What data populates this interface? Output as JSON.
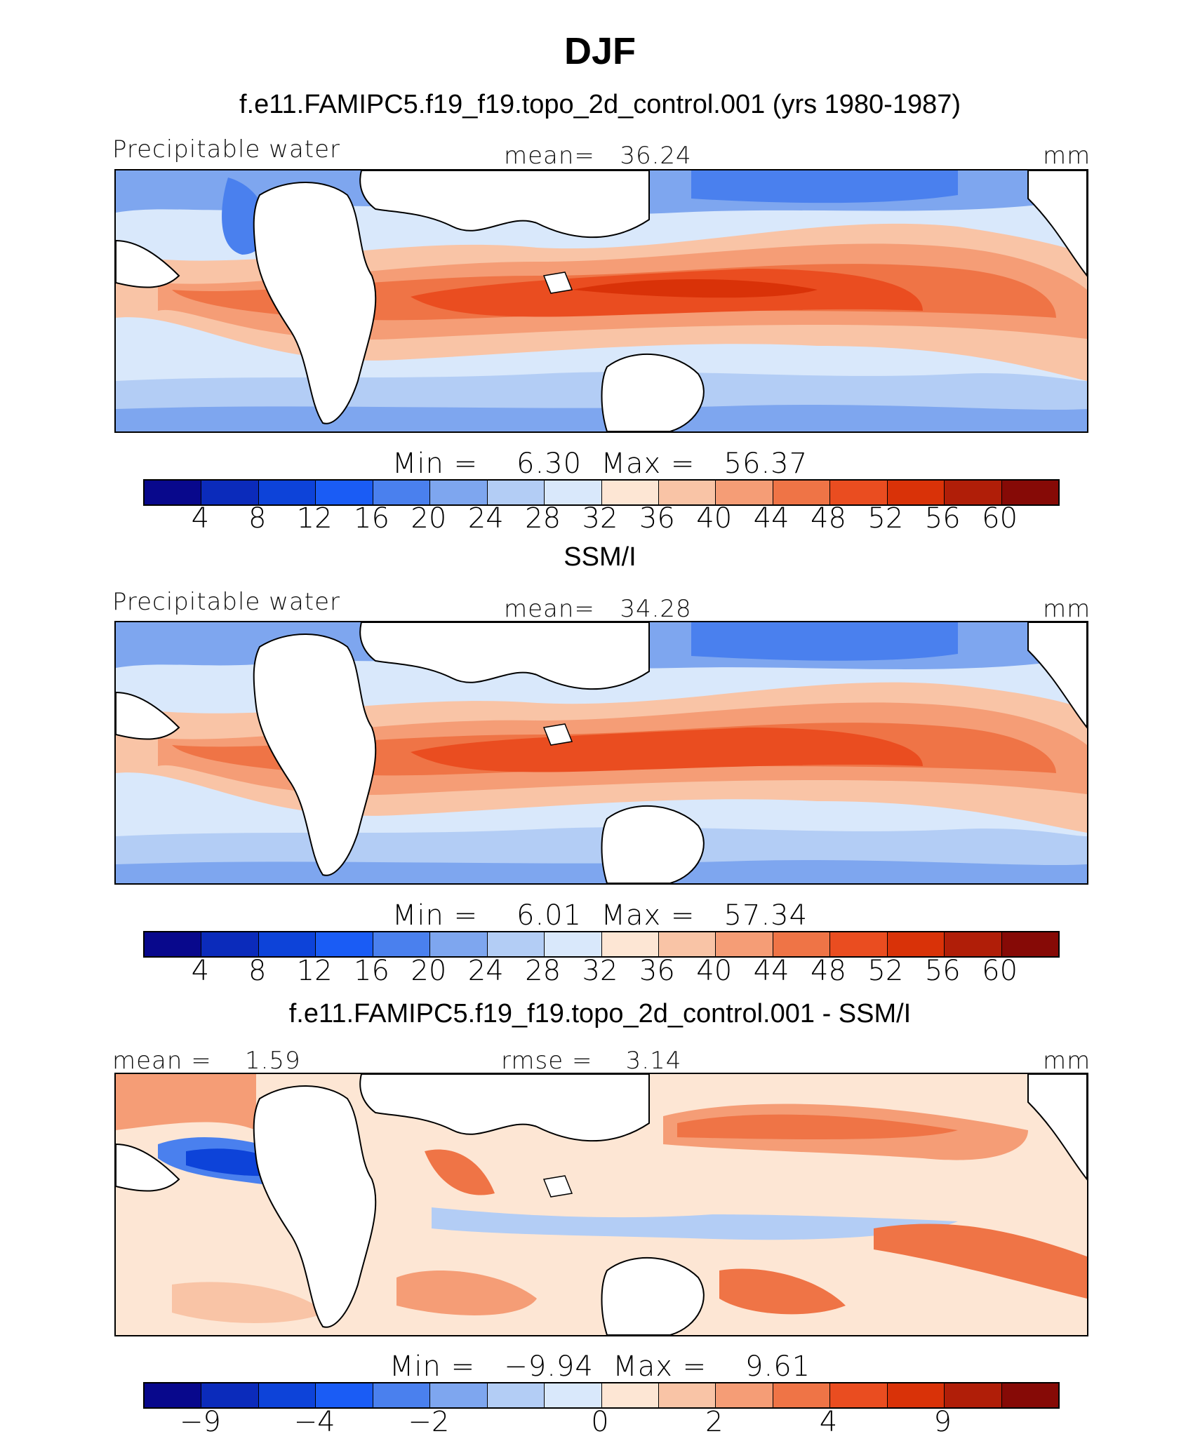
{
  "title": "DJF",
  "colorbar_colors": [
    "#08088c",
    "#0b2bbb",
    "#0d43d9",
    "#1a5cf5",
    "#4a80ee",
    "#7ea6ef",
    "#b3cdf5",
    "#d9e8fb",
    "#fde6d4",
    "#f9c4a6",
    "#f59d76",
    "#ef7446",
    "#ea4d20",
    "#d93208",
    "#b01e08",
    "#860a06"
  ],
  "panels": [
    {
      "subtitle": "f.e11.FAMIPC5.f19_f19.topo_2d_control.001 (yrs 1980-1987)",
      "left_label": "Precipitable water",
      "center_label": "mean=   36.24",
      "right_label": "mm",
      "minmax": "Min =    6.30  Max =   56.37",
      "ticks": [
        "4",
        "8",
        "12",
        "16",
        "20",
        "24",
        "28",
        "32",
        "36",
        "40",
        "44",
        "48",
        "52",
        "56",
        "60"
      ]
    },
    {
      "subtitle": "SSM/I",
      "left_label": "Precipitable water",
      "center_label": "mean=   34.28",
      "right_label": "mm",
      "minmax": "Min =    6.01  Max =   57.34",
      "ticks": [
        "4",
        "8",
        "12",
        "16",
        "20",
        "24",
        "28",
        "32",
        "36",
        "40",
        "44",
        "48",
        "52",
        "56",
        "60"
      ]
    },
    {
      "subtitle": "f.e11.FAMIPC5.f19_f19.topo_2d_control.001 - SSM/I",
      "left_label": "mean =    1.59",
      "center_label": "rmse =    3.14",
      "right_label": "mm",
      "minmax": "Min =   −9.94  Max =    9.61",
      "ticks": [
        "−9",
        "−4",
        "−2",
        "0",
        "2",
        "4",
        "9"
      ]
    }
  ]
}
